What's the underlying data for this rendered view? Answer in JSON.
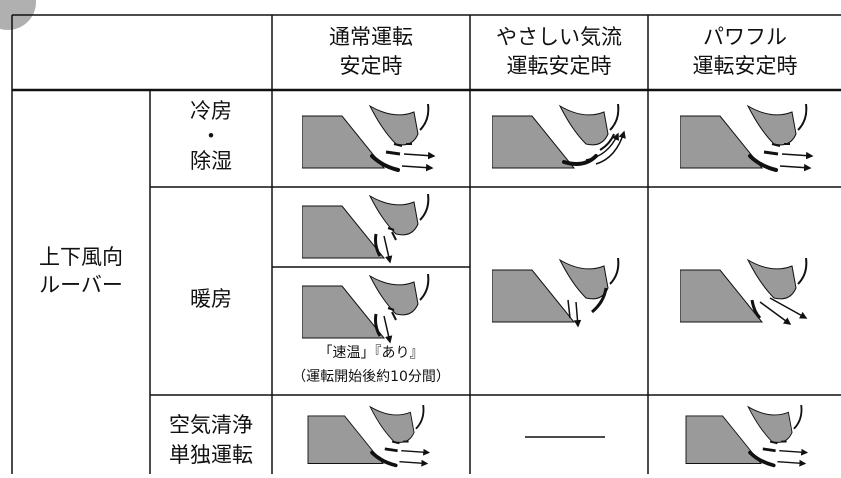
{
  "table": {
    "header": [
      [
        "通常運転",
        "安定時"
      ],
      [
        "やさしい気流",
        "運転安定時"
      ],
      [
        "パワフル",
        "運転安定時"
      ]
    ],
    "group_label": [
      "上下風向",
      "ルーバー"
    ],
    "rows": [
      {
        "label": [
          "冷房",
          "・",
          "除湿"
        ]
      },
      {
        "label": [
          "暖房"
        ],
        "note": [
          "「速温」『あり』",
          "（運転開始後約10分間）"
        ]
      },
      {
        "label": [
          "空気清浄",
          "単独運転"
        ]
      }
    ]
  }
}
